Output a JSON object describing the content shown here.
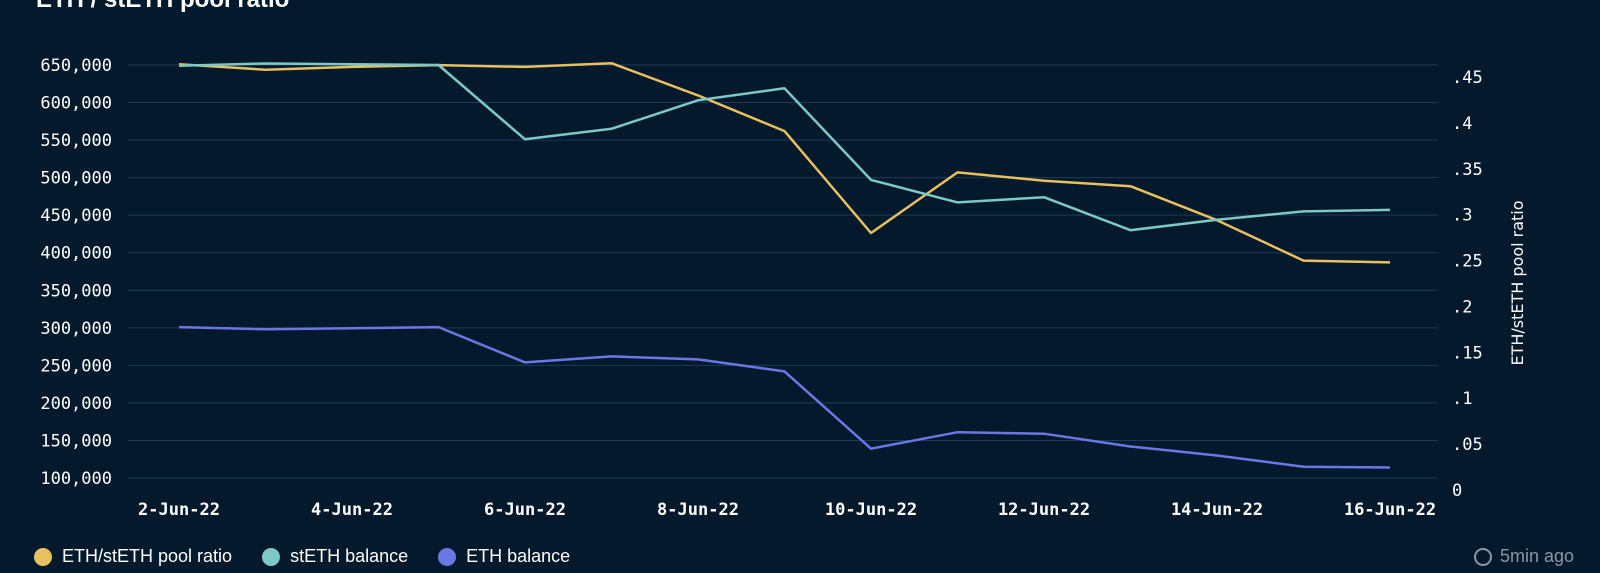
{
  "header": {
    "title": "ETH / stETH pool ratio"
  },
  "chart_data": {
    "type": "line",
    "title": "ETH / stETH pool ratio",
    "x": [
      "2-Jun-22",
      "3-Jun-22",
      "4-Jun-22",
      "5-Jun-22",
      "6-Jun-22",
      "7-Jun-22",
      "8-Jun-22",
      "9-Jun-22",
      "10-Jun-22",
      "11-Jun-22",
      "12-Jun-22",
      "13-Jun-22",
      "14-Jun-22",
      "15-Jun-22",
      "16-Jun-22"
    ],
    "x_tick_labels": [
      "2-Jun-22",
      "4-Jun-22",
      "6-Jun-22",
      "8-Jun-22",
      "10-Jun-22",
      "12-Jun-22",
      "14-Jun-22",
      "16-Jun-22"
    ],
    "xlabel": "",
    "ylabel_left": "",
    "ylabel_right": "ETH/stETH pool ratio",
    "ylim_left": [
      100000,
      650000
    ],
    "y_ticks_left": [
      "100,000",
      "150,000",
      "200,000",
      "250,000",
      "300,000",
      "350,000",
      "400,000",
      "450,000",
      "500,000",
      "550,000",
      "600,000",
      "650,000"
    ],
    "ylim_right": [
      0,
      0.45
    ],
    "y_ticks_right": [
      "0",
      ".05",
      ".1",
      ".15",
      ".2",
      ".25",
      ".3",
      ".35",
      ".4",
      ".45"
    ],
    "grid": true,
    "legend_position": "bottom-left",
    "series": [
      {
        "name": "ETH/stETH pool ratio",
        "axis": "right",
        "color": "#e8c060",
        "values": [
          0.464,
          0.458,
          0.461,
          0.463,
          0.461,
          0.465,
          0.43,
          0.391,
          0.28,
          0.346,
          0.337,
          0.331,
          0.294,
          0.25,
          0.248
        ]
      },
      {
        "name": "stETH balance",
        "axis": "left",
        "color": "#7cc9c6",
        "values": [
          649000,
          652000,
          651000,
          650000,
          551000,
          565000,
          603000,
          619000,
          497000,
          467000,
          474000,
          430000,
          444000,
          455000,
          457000
        ]
      },
      {
        "name": "ETH balance",
        "axis": "left",
        "color": "#6a78e6",
        "values": [
          301000,
          298000,
          299500,
          301000,
          254000,
          262000,
          258000,
          242000,
          139000,
          161000,
          159000,
          142000,
          130000,
          115000,
          114000
        ]
      }
    ]
  },
  "legend": {
    "items": [
      {
        "label": "ETH/stETH pool ratio",
        "color": "#e8c060"
      },
      {
        "label": "stETH balance",
        "color": "#7cc9c6"
      },
      {
        "label": "ETH balance",
        "color": "#6a78e6"
      }
    ]
  },
  "footer": {
    "freshness": "5min ago"
  }
}
